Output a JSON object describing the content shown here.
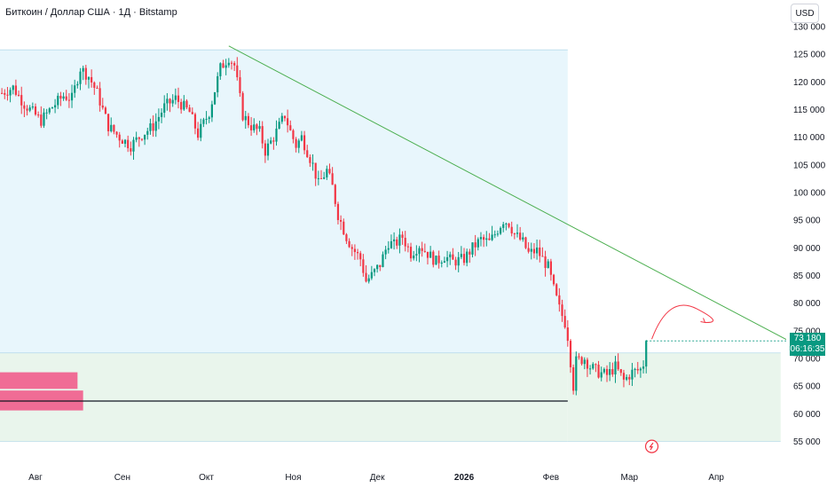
{
  "header": {
    "title": "Биткоин / Доллар США · 1Д · Bitstamp",
    "currency": "USD"
  },
  "price_label": {
    "value": "73 180",
    "countdown": "06:16:35"
  },
  "colors": {
    "up": "#089981",
    "down": "#f23645",
    "trendline": "#4caf50",
    "zone_blue": "#e8f6fc",
    "zone_green": "#e9f5ec",
    "rect_pink": "#f06c95",
    "arrow": "#f23645"
  },
  "chart_data": {
    "type": "candlestick",
    "title": "Биткоин / Доллар США · 1Д · Bitstamp",
    "y_ticks": [
      "55 000",
      "60 000",
      "65 000",
      "70 000",
      "75 000",
      "80 000",
      "85 000",
      "90 000",
      "95 000",
      "100 000",
      "105 000",
      "110 000",
      "115 000",
      "120 000",
      "125 000",
      "130 000"
    ],
    "x_ticks": [
      {
        "label": "Авг",
        "bold": false,
        "day": 0
      },
      {
        "label": "Сен",
        "bold": false,
        "day": 31
      },
      {
        "label": "Окт",
        "bold": false,
        "day": 61
      },
      {
        "label": "Ноя",
        "bold": false,
        "day": 92
      },
      {
        "label": "Дек",
        "bold": false,
        "day": 122
      },
      {
        "label": "2026",
        "bold": true,
        "day": 153
      },
      {
        "label": "Фев",
        "bold": false,
        "day": 184
      },
      {
        "label": "Мар",
        "bold": false,
        "day": 212
      },
      {
        "label": "Апр",
        "bold": false,
        "day": 243
      }
    ],
    "y_range": [
      53000,
      131000
    ],
    "last_price": 73180,
    "anchors": [
      [
        -12,
        118000
      ],
      [
        -8,
        119000
      ],
      [
        -4,
        116000
      ],
      [
        2,
        113000
      ],
      [
        6,
        115500
      ],
      [
        10,
        117500
      ],
      [
        13,
        117000
      ],
      [
        16,
        122500
      ],
      [
        19,
        121000
      ],
      [
        22,
        118000
      ],
      [
        26,
        112000
      ],
      [
        30,
        110000
      ],
      [
        34,
        108500
      ],
      [
        38,
        110500
      ],
      [
        42,
        112000
      ],
      [
        46,
        115500
      ],
      [
        50,
        117000
      ],
      [
        55,
        114500
      ],
      [
        58,
        110500
      ],
      [
        60,
        112500
      ],
      [
        62,
        114500
      ],
      [
        64,
        118500
      ],
      [
        66,
        122500
      ],
      [
        69,
        124500
      ],
      [
        71,
        123000
      ],
      [
        74,
        114000
      ],
      [
        77,
        112000
      ],
      [
        80,
        111000
      ],
      [
        82,
        107500
      ],
      [
        85,
        110000
      ],
      [
        89,
        114000
      ],
      [
        91,
        111000
      ],
      [
        93,
        108500
      ],
      [
        95,
        110000
      ],
      [
        99,
        105000
      ],
      [
        101,
        101500
      ],
      [
        104,
        104000
      ],
      [
        106,
        101000
      ],
      [
        108,
        96000
      ],
      [
        111,
        92000
      ],
      [
        113,
        90000
      ],
      [
        116,
        88000
      ],
      [
        118,
        84000
      ],
      [
        120,
        85000
      ],
      [
        123,
        87000
      ],
      [
        126,
        91000
      ],
      [
        128,
        90500
      ],
      [
        131,
        92000
      ],
      [
        134,
        89000
      ],
      [
        137,
        90500
      ],
      [
        140,
        89000
      ],
      [
        143,
        87500
      ],
      [
        146,
        88500
      ],
      [
        149,
        87500
      ],
      [
        153,
        88000
      ],
      [
        156,
        90000
      ],
      [
        159,
        91500
      ],
      [
        162,
        91000
      ],
      [
        164,
        92500
      ],
      [
        167,
        95000
      ],
      [
        169,
        94500
      ],
      [
        171,
        92500
      ],
      [
        174,
        91000
      ],
      [
        176,
        89000
      ],
      [
        179,
        89500
      ],
      [
        181,
        88000
      ],
      [
        183,
        86500
      ],
      [
        185,
        82500
      ],
      [
        187,
        79000
      ],
      [
        189,
        76500
      ],
      [
        190,
        74000
      ],
      [
        191,
        69500
      ],
      [
        192,
        65000
      ],
      [
        193,
        69500
      ],
      [
        196,
        70000
      ],
      [
        198,
        68500
      ],
      [
        201,
        67500
      ],
      [
        204,
        67000
      ],
      [
        207,
        68500
      ],
      [
        210,
        66000
      ],
      [
        213,
        67500
      ],
      [
        216,
        68000
      ],
      [
        217,
        69000
      ],
      [
        218,
        73180
      ]
    ],
    "trendline": [
      {
        "day": 69,
        "price": 126500
      },
      {
        "day": 279,
        "price": 70500
      }
    ],
    "resistance_line": {
      "price": 62300,
      "day_end": 190
    },
    "zones": [
      {
        "color": "zone_blue",
        "price_top": 125800,
        "price_bottom": 71000,
        "day_end": 190
      },
      {
        "color": "zone_green",
        "price_top": 71000,
        "price_bottom": 55000,
        "day_end": 190
      },
      {
        "color": "zone_green",
        "price_top": 71000,
        "price_bottom": 55000,
        "day_start": 190,
        "day_end": 266
      }
    ],
    "pink_rects": [
      {
        "price_top": 67500,
        "price_bottom": 64500,
        "day_end": 15
      },
      {
        "price_top": 64200,
        "price_bottom": 60600,
        "day_end": 17
      }
    ],
    "forecast_arrow": [
      {
        "day": 220,
        "price": 73500
      },
      {
        "day": 226,
        "price": 80000
      },
      {
        "day": 236,
        "price": 79000
      },
      {
        "day": 239,
        "price": 76500
      }
    ],
    "event_icon": {
      "day": 220,
      "price": 54100
    }
  }
}
